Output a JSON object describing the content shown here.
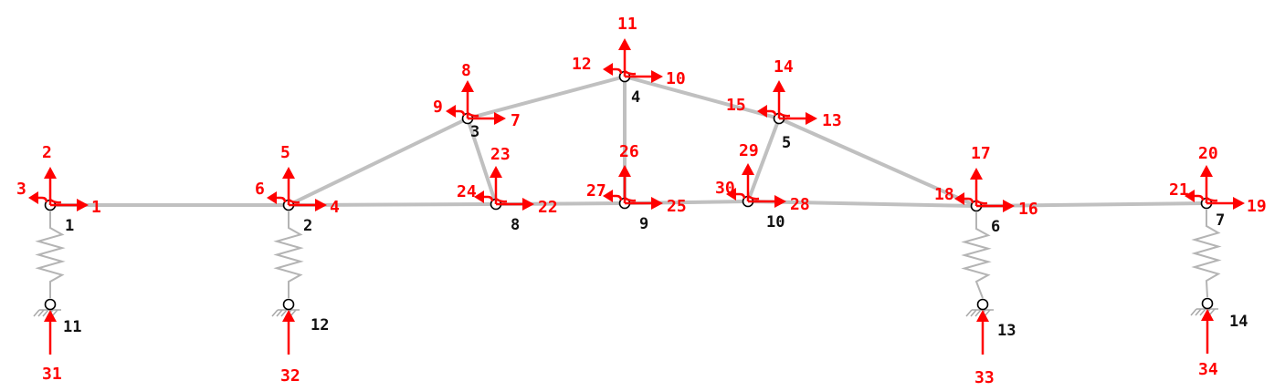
{
  "diagram": {
    "nodes": [
      {
        "id": "1",
        "label": "1"
      },
      {
        "id": "2",
        "label": "2"
      },
      {
        "id": "3",
        "label": "3"
      },
      {
        "id": "4",
        "label": "4"
      },
      {
        "id": "5",
        "label": "5"
      },
      {
        "id": "6",
        "label": "6"
      },
      {
        "id": "7",
        "label": "7"
      },
      {
        "id": "8",
        "label": "8"
      },
      {
        "id": "9",
        "label": "9"
      },
      {
        "id": "10",
        "label": "10"
      },
      {
        "id": "11",
        "label": "11"
      },
      {
        "id": "12",
        "label": "12"
      },
      {
        "id": "13",
        "label": "13"
      },
      {
        "id": "14",
        "label": "14"
      }
    ],
    "members": [
      [
        "1",
        "2"
      ],
      [
        "2",
        "8"
      ],
      [
        "8",
        "9"
      ],
      [
        "9",
        "10"
      ],
      [
        "10",
        "6"
      ],
      [
        "6",
        "7"
      ],
      [
        "2",
        "3"
      ],
      [
        "3",
        "4"
      ],
      [
        "4",
        "5"
      ],
      [
        "5",
        "6"
      ],
      [
        "3",
        "8"
      ],
      [
        "4",
        "9"
      ],
      [
        "5",
        "10"
      ]
    ],
    "springs": [
      [
        "1",
        "11"
      ],
      [
        "2",
        "12"
      ],
      [
        "6",
        "13"
      ],
      [
        "7",
        "14"
      ]
    ],
    "dofs": [
      {
        "node": "1",
        "x": "1",
        "y": "2",
        "rot": "3"
      },
      {
        "node": "2",
        "x": "4",
        "y": "5",
        "rot": "6"
      },
      {
        "node": "3",
        "x": "7",
        "y": "8",
        "rot": "9"
      },
      {
        "node": "4",
        "x": "10",
        "y": "11",
        "rot": "12"
      },
      {
        "node": "5",
        "x": "13",
        "y": "14",
        "rot": "15"
      },
      {
        "node": "6",
        "x": "16",
        "y": "17",
        "rot": "18"
      },
      {
        "node": "7",
        "x": "19",
        "y": "20",
        "rot": "21"
      },
      {
        "node": "8",
        "x": "22",
        "y": "23",
        "rot": "24"
      },
      {
        "node": "9",
        "x": "25",
        "y": "26",
        "rot": "27"
      },
      {
        "node": "10",
        "x": "28",
        "y": "29",
        "rot": "30"
      }
    ],
    "support_dofs": [
      {
        "node": "11",
        "y": "31"
      },
      {
        "node": "12",
        "y": "32"
      },
      {
        "node": "13",
        "y": "33"
      },
      {
        "node": "14",
        "y": "34"
      }
    ],
    "colors": {
      "member": "#c0c0c0",
      "dof": "#ff0000",
      "node_label": "#111111"
    }
  }
}
